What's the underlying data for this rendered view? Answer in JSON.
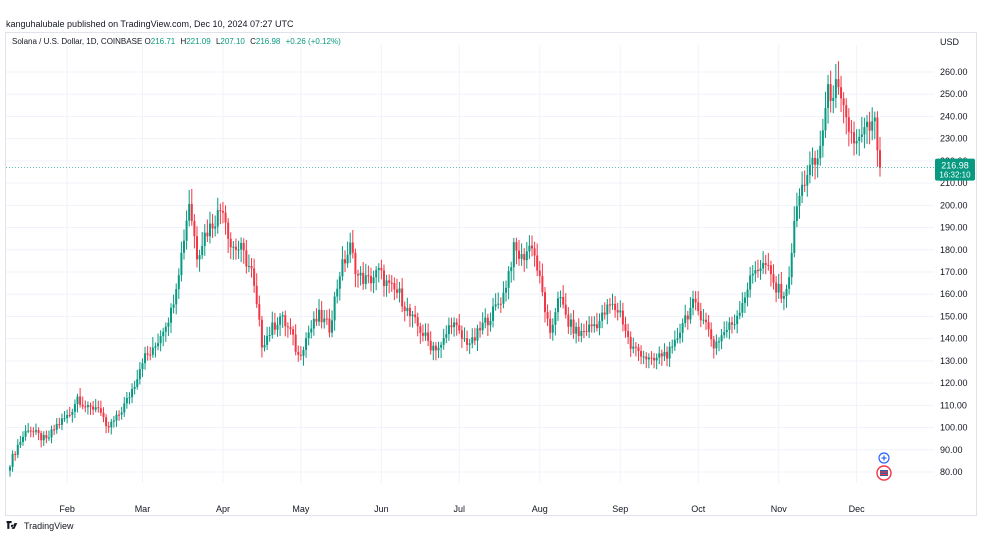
{
  "header": {
    "published": "kanguhalubale published on TradingView.com, Dec 10, 2024 07:27 UTC"
  },
  "legend": {
    "symbol": "Solana / U.S. Dollar, 1D, COINBASE",
    "o_label": "O",
    "o": "216.71",
    "h_label": "H",
    "h": "221.09",
    "l_label": "L",
    "l": "207.10",
    "c_label": "C",
    "c": "216.98",
    "change": "+0.26 (+0.12%)"
  },
  "currency": "USD",
  "footer": {
    "brand": "TradingView"
  },
  "chart_data": {
    "type": "candlestick",
    "title": "",
    "ylim": [
      70,
      270
    ],
    "yticks": [
      80,
      90,
      100,
      110,
      120,
      130,
      140,
      150,
      160,
      170,
      180,
      190,
      200,
      210,
      220,
      230,
      240,
      250,
      260
    ],
    "ytick_labels": [
      "80.00",
      "90.00",
      "100.00",
      "110.00",
      "120.00",
      "130.00",
      "140.00",
      "150.00",
      "160.00",
      "170.00",
      "180.00",
      "190.00",
      "200.00",
      "210.00",
      "220.00",
      "230.00",
      "240.00",
      "250.00",
      "260.00"
    ],
    "x_start": "2024-01-10",
    "x_end": "2024-12-10",
    "month_labels": [
      {
        "label": "Feb",
        "date": "2024-02-01"
      },
      {
        "label": "Mar",
        "date": "2024-03-01"
      },
      {
        "label": "Apr",
        "date": "2024-04-01"
      },
      {
        "label": "May",
        "date": "2024-05-01"
      },
      {
        "label": "Jun",
        "date": "2024-06-01"
      },
      {
        "label": "Jul",
        "date": "2024-07-01"
      },
      {
        "label": "Aug",
        "date": "2024-08-01"
      },
      {
        "label": "Sep",
        "date": "2024-09-01"
      },
      {
        "label": "Oct",
        "date": "2024-10-01"
      },
      {
        "label": "Nov",
        "date": "2024-11-01"
      },
      {
        "label": "Dec",
        "date": "2024-12-01"
      }
    ],
    "anchors": [
      [
        "2024-01-10",
        84
      ],
      [
        "2024-01-13",
        92
      ],
      [
        "2024-01-17",
        100
      ],
      [
        "2024-01-20",
        97
      ],
      [
        "2024-01-24",
        94
      ],
      [
        "2024-01-28",
        101
      ],
      [
        "2024-02-02",
        106
      ],
      [
        "2024-02-05",
        114
      ],
      [
        "2024-02-09",
        108
      ],
      [
        "2024-02-13",
        110
      ],
      [
        "2024-02-16",
        99
      ],
      [
        "2024-02-20",
        104
      ],
      [
        "2024-02-24",
        112
      ],
      [
        "2024-02-27",
        120
      ],
      [
        "2024-03-01",
        131
      ],
      [
        "2024-03-05",
        134
      ],
      [
        "2024-03-09",
        145
      ],
      [
        "2024-03-12",
        152
      ],
      [
        "2024-03-16",
        178
      ],
      [
        "2024-03-19",
        202
      ],
      [
        "2024-03-22",
        178
      ],
      [
        "2024-03-25",
        187
      ],
      [
        "2024-03-28",
        192
      ],
      [
        "2024-04-01",
        200
      ],
      [
        "2024-04-04",
        182
      ],
      [
        "2024-04-08",
        180
      ],
      [
        "2024-04-12",
        170
      ],
      [
        "2024-04-16",
        138
      ],
      [
        "2024-04-19",
        143
      ],
      [
        "2024-04-23",
        150
      ],
      [
        "2024-04-27",
        143
      ],
      [
        "2024-04-30",
        132
      ],
      [
        "2024-05-04",
        143
      ],
      [
        "2024-05-08",
        150
      ],
      [
        "2024-05-12",
        145
      ],
      [
        "2024-05-16",
        170
      ],
      [
        "2024-05-20",
        181
      ],
      [
        "2024-05-23",
        168
      ],
      [
        "2024-05-27",
        166
      ],
      [
        "2024-05-31",
        170
      ],
      [
        "2024-06-04",
        163
      ],
      [
        "2024-06-08",
        160
      ],
      [
        "2024-06-12",
        150
      ],
      [
        "2024-06-16",
        144
      ],
      [
        "2024-06-20",
        137
      ],
      [
        "2024-06-24",
        136
      ],
      [
        "2024-06-28",
        148
      ],
      [
        "2024-07-02",
        140
      ],
      [
        "2024-07-06",
        138
      ],
      [
        "2024-07-10",
        146
      ],
      [
        "2024-07-14",
        152
      ],
      [
        "2024-07-18",
        160
      ],
      [
        "2024-07-22",
        180
      ],
      [
        "2024-07-25",
        176
      ],
      [
        "2024-07-29",
        183
      ],
      [
        "2024-08-02",
        160
      ],
      [
        "2024-08-05",
        140
      ],
      [
        "2024-08-08",
        160
      ],
      [
        "2024-08-12",
        147
      ],
      [
        "2024-08-16",
        142
      ],
      [
        "2024-08-20",
        145
      ],
      [
        "2024-08-24",
        148
      ],
      [
        "2024-08-28",
        155
      ],
      [
        "2024-09-01",
        152
      ],
      [
        "2024-09-05",
        136
      ],
      [
        "2024-09-09",
        134
      ],
      [
        "2024-09-13",
        129
      ],
      [
        "2024-09-17",
        133
      ],
      [
        "2024-09-21",
        134
      ],
      [
        "2024-09-25",
        148
      ],
      [
        "2024-09-29",
        155
      ],
      [
        "2024-10-03",
        150
      ],
      [
        "2024-10-07",
        137
      ],
      [
        "2024-10-11",
        143
      ],
      [
        "2024-10-15",
        148
      ],
      [
        "2024-10-19",
        160
      ],
      [
        "2024-10-23",
        172
      ],
      [
        "2024-10-27",
        173
      ],
      [
        "2024-10-31",
        162
      ],
      [
        "2024-11-04",
        160
      ],
      [
        "2024-11-08",
        200
      ],
      [
        "2024-11-12",
        215
      ],
      [
        "2024-11-16",
        220
      ],
      [
        "2024-11-20",
        250
      ],
      [
        "2024-11-23",
        253
      ],
      [
        "2024-11-27",
        237
      ],
      [
        "2024-12-01",
        227
      ],
      [
        "2024-12-05",
        234
      ],
      [
        "2024-12-08",
        236
      ],
      [
        "2024-12-10",
        217
      ]
    ],
    "last_price": 216.98,
    "last_price_label": "216.98",
    "countdown": "16:32:10",
    "up_color": "#089981",
    "down_color": "#f23645"
  },
  "colors": {
    "grid": "#f0f3fa",
    "axis_text": "#131722",
    "price_line": "#089981"
  },
  "icons": {
    "marker_plus": "plus-circle-icon",
    "marker_flag": "flag-icon",
    "brand_logo": "tradingview-logo-icon"
  }
}
